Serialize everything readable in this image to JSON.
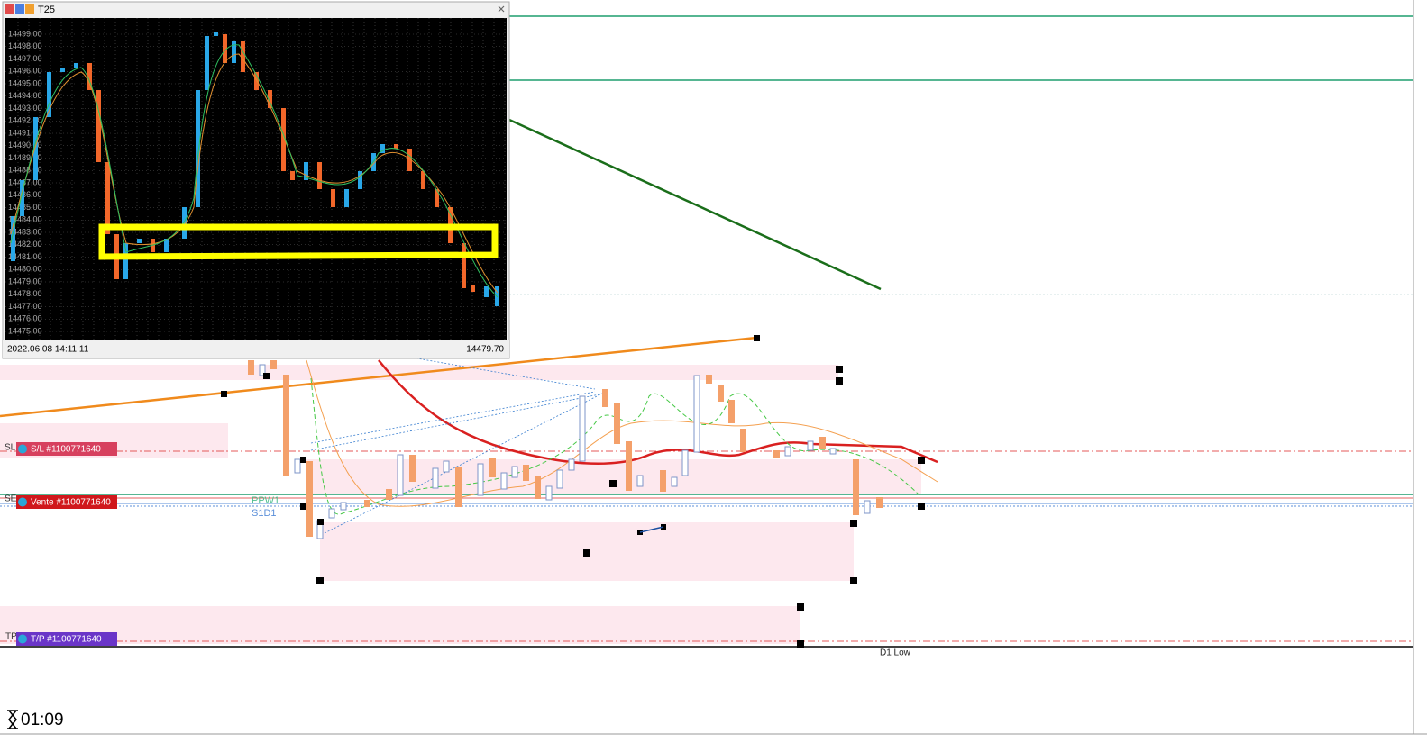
{
  "window": {
    "title": "T25",
    "price_labels": [
      "14499.00",
      "14498.00",
      "14497.00",
      "14496.00",
      "14495.00",
      "14494.00",
      "14493.00",
      "14492.00",
      "14491.00",
      "14490.00",
      "14489.00",
      "14488.00",
      "14487.00",
      "14486.00",
      "14485.00",
      "14484.00",
      "14483.00",
      "14482.00",
      "14481.00",
      "14480.00",
      "14479.00",
      "14478.00",
      "14477.00",
      "14476.00",
      "14475.00"
    ],
    "timestamp": "2022.06.08 14:11:11",
    "last_price": "14479.70"
  },
  "orders": [
    {
      "line": "SL",
      "tag": "S/L #1100771640"
    },
    {
      "line": "SE",
      "tag": "Vente #1100771640"
    },
    {
      "line": "TP",
      "tag": "T/P #1100771640"
    }
  ],
  "levels": [
    "PPW1",
    "S1D1",
    "D1 Low"
  ],
  "timer": "01:09"
}
